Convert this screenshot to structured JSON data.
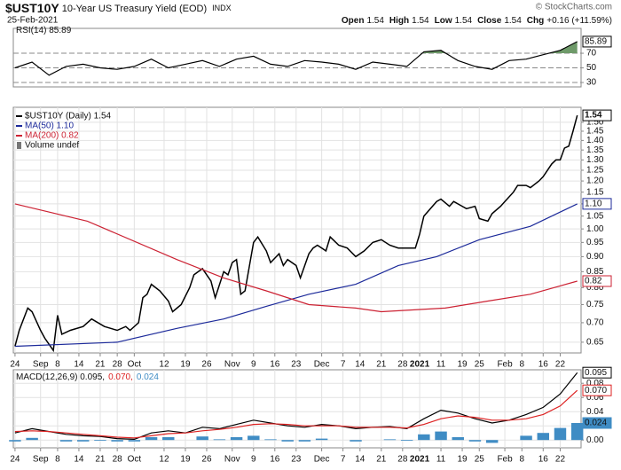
{
  "header": {
    "symbol": "$UST10Y",
    "name": "10-Year US Treasury Yield (EOD)",
    "exchange": "INDX",
    "date": "25-Feb-2021",
    "quote": [
      {
        "label": "Open",
        "value": "1.54"
      },
      {
        "label": "High",
        "value": "1.54"
      },
      {
        "label": "Low",
        "value": "1.54"
      },
      {
        "label": "Close",
        "value": "1.54"
      },
      {
        "label": "Chg",
        "value": "+0.16 (+11.59%)"
      }
    ],
    "copyright": "© StockCharts.com"
  },
  "chart_data": [
    {
      "type": "line",
      "xlim": [
        -0.4,
        132.9
      ],
      "ylim": [
        24,
        104
      ],
      "yticks": [
        30,
        50,
        70
      ],
      "grid": true,
      "fill_above": 70,
      "fill_color": "#6f9a6a",
      "x": [
        0,
        4,
        8,
        12,
        16,
        20,
        24,
        28,
        32,
        36,
        40,
        44,
        48,
        52,
        56,
        60,
        64,
        68,
        72,
        76,
        80,
        84,
        88,
        92,
        96,
        100,
        104,
        108,
        112,
        116,
        120,
        124,
        128,
        132
      ],
      "series": [
        {
          "name": "RSI(14) 85.89",
          "color": "#000000",
          "end_label": "85.89",
          "values": [
            50,
            58,
            40,
            52,
            55,
            50,
            48,
            52,
            62,
            50,
            55,
            60,
            52,
            62,
            66,
            55,
            52,
            60,
            58,
            55,
            48,
            58,
            55,
            52,
            72,
            74,
            60,
            52,
            48,
            60,
            62,
            68,
            74,
            85.89
          ]
        }
      ]
    },
    {
      "type": "line",
      "log": true,
      "grid": true,
      "xlim": [
        -0.4,
        132.9
      ],
      "ylim": [
        0.624,
        1.588
      ],
      "volume_label": "Volume undef",
      "yticks": [
        0.65,
        {
          "value": 0.7,
          "label": "0.70"
        },
        0.75,
        {
          "value": 0.8,
          "label": "0.80"
        },
        0.85,
        {
          "value": 0.9,
          "label": "0.90"
        },
        0.95,
        {
          "value": 1,
          "label": "1.00"
        },
        1.05,
        {
          "value": 1.1,
          "label": "1.10"
        },
        1.15,
        {
          "value": 1.2,
          "label": "1.20"
        },
        1.25,
        {
          "value": 1.3,
          "label": "1.30"
        },
        1.35,
        {
          "value": 1.4,
          "label": "1.40"
        },
        1.45,
        {
          "value": 1.5,
          "label": "1.50"
        }
      ],
      "xticks": [
        {
          "value": 0,
          "label": "24"
        },
        {
          "value": 6,
          "label": "Sep"
        },
        {
          "value": 10,
          "label": "8"
        },
        {
          "value": 15,
          "label": "14"
        },
        {
          "value": 20,
          "label": "21"
        },
        {
          "value": 24,
          "label": "28"
        },
        {
          "value": 28,
          "label": "Oct"
        },
        {
          "value": 35,
          "label": "12"
        },
        {
          "value": 40,
          "label": "19"
        },
        {
          "value": 45,
          "label": "26"
        },
        {
          "value": 51,
          "label": "Nov"
        },
        {
          "value": 56,
          "label": "9"
        },
        {
          "value": 61,
          "label": "16"
        },
        {
          "value": 66,
          "label": "23"
        },
        {
          "value": 72,
          "label": "Dec"
        },
        {
          "value": 77,
          "label": "7"
        },
        {
          "value": 81,
          "label": "14"
        },
        {
          "value": 86,
          "label": "21"
        },
        {
          "value": 91,
          "label": "28"
        },
        {
          "value": 95,
          "label": "2021"
        },
        {
          "value": 100,
          "label": "11"
        },
        {
          "value": 105,
          "label": "19"
        },
        {
          "value": 109,
          "label": "25"
        },
        {
          "value": 115,
          "label": "Feb"
        },
        {
          "value": 119,
          "label": "8"
        },
        {
          "value": 124,
          "label": "16"
        },
        {
          "value": 128,
          "label": "22"
        }
      ],
      "series": [
        {
          "name": "$UST10Y (Daily) 1.54",
          "color": "#000000",
          "end_label": "1.54",
          "x": [
            0,
            1,
            3,
            4,
            6,
            7,
            9,
            10,
            11,
            13,
            16,
            18,
            21,
            24,
            26,
            27,
            29,
            30,
            31,
            32,
            34,
            36,
            37,
            39,
            41,
            42,
            44,
            46,
            47,
            49,
            50,
            51,
            52,
            53,
            54,
            56,
            57,
            59,
            60,
            62,
            63,
            64,
            66,
            67,
            69,
            70,
            71,
            73,
            74,
            76,
            78,
            80,
            82,
            84,
            86,
            88,
            90,
            92,
            94,
            95,
            96,
            99,
            100,
            102,
            103,
            105,
            106,
            108,
            109,
            111,
            112,
            114,
            115,
            117,
            118,
            120,
            121,
            123,
            124,
            126,
            127,
            128,
            129,
            130,
            131,
            132
          ],
          "values": [
            0.64,
            0.68,
            0.74,
            0.73,
            0.68,
            0.66,
            0.63,
            0.72,
            0.67,
            0.68,
            0.69,
            0.71,
            0.69,
            0.68,
            0.69,
            0.68,
            0.7,
            0.77,
            0.78,
            0.81,
            0.79,
            0.76,
            0.73,
            0.75,
            0.8,
            0.84,
            0.86,
            0.82,
            0.77,
            0.85,
            0.84,
            0.88,
            0.89,
            0.78,
            0.79,
            0.95,
            0.97,
            0.92,
            0.88,
            0.91,
            0.87,
            0.89,
            0.87,
            0.83,
            0.91,
            0.93,
            0.94,
            0.92,
            0.97,
            0.94,
            0.93,
            0.9,
            0.92,
            0.95,
            0.96,
            0.94,
            0.93,
            0.93,
            0.93,
            0.98,
            1.05,
            1.11,
            1.12,
            1.09,
            1.11,
            1.09,
            1.08,
            1.09,
            1.04,
            1.03,
            1.06,
            1.09,
            1.11,
            1.15,
            1.18,
            1.18,
            1.17,
            1.2,
            1.22,
            1.28,
            1.3,
            1.3,
            1.36,
            1.37,
            1.45,
            1.54
          ]
        },
        {
          "name": "MA(50) 1.10",
          "color": "#1c2a9a",
          "end_label": "1.10",
          "x": [
            0,
            24,
            38,
            49,
            59,
            69,
            80,
            90,
            99,
            109,
            121,
            132
          ],
          "values": [
            0.64,
            0.65,
            0.685,
            0.71,
            0.745,
            0.78,
            0.81,
            0.87,
            0.9,
            0.96,
            1.01,
            1.1
          ]
        },
        {
          "name": "MA(200) 0.82",
          "color": "#cc2233",
          "end_label": "0.82",
          "x": [
            0,
            17,
            38,
            49,
            59,
            69,
            80,
            86,
            101,
            111,
            121,
            132
          ],
          "values": [
            1.1,
            1.03,
            0.89,
            0.83,
            0.79,
            0.75,
            0.74,
            0.73,
            0.74,
            0.76,
            0.78,
            0.82
          ]
        }
      ]
    },
    {
      "type": "line",
      "grid": true,
      "legend_inline": true,
      "xlim": [
        -0.4,
        132.9
      ],
      "ylim": [
        -0.011,
        0.099
      ],
      "yticks": [
        {
          "value": 0,
          "label": "0.00"
        },
        0.02,
        0.04,
        0.06,
        0.08
      ],
      "xticks": [
        {
          "value": 0,
          "label": "24"
        },
        {
          "value": 6,
          "label": "Sep"
        },
        {
          "value": 10,
          "label": "8"
        },
        {
          "value": 15,
          "label": "14"
        },
        {
          "value": 20,
          "label": "21"
        },
        {
          "value": 24,
          "label": "28"
        },
        {
          "value": 28,
          "label": "Oct"
        },
        {
          "value": 35,
          "label": "12"
        },
        {
          "value": 40,
          "label": "19"
        },
        {
          "value": 45,
          "label": "26"
        },
        {
          "value": 51,
          "label": "Nov"
        },
        {
          "value": 56,
          "label": "9"
        },
        {
          "value": 61,
          "label": "16"
        },
        {
          "value": 66,
          "label": "23"
        },
        {
          "value": 72,
          "label": "Dec"
        },
        {
          "value": 77,
          "label": "7"
        },
        {
          "value": 81,
          "label": "14"
        },
        {
          "value": 86,
          "label": "21"
        },
        {
          "value": 91,
          "label": "28"
        },
        {
          "value": 95,
          "label": "2021"
        },
        {
          "value": 100,
          "label": "11"
        },
        {
          "value": 105,
          "label": "19"
        },
        {
          "value": 109,
          "label": "25"
        },
        {
          "value": 115,
          "label": "Feb"
        },
        {
          "value": 119,
          "label": "8"
        },
        {
          "value": 124,
          "label": "16"
        },
        {
          "value": 128,
          "label": "22"
        }
      ],
      "x": [
        0,
        4,
        8,
        12,
        16,
        20,
        24,
        28,
        32,
        36,
        40,
        44,
        48,
        52,
        56,
        60,
        64,
        68,
        72,
        76,
        80,
        84,
        88,
        92,
        96,
        100,
        104,
        108,
        112,
        116,
        120,
        124,
        128,
        132
      ],
      "series": [
        {
          "name": "MACD(12,26,9) 0.095,",
          "color": "#000000",
          "end_label": "0.095",
          "values": [
            0.01,
            0.016,
            0.012,
            0.008,
            0.006,
            0.005,
            0.002,
            0.001,
            0.01,
            0.013,
            0.01,
            0.018,
            0.016,
            0.022,
            0.028,
            0.024,
            0.02,
            0.018,
            0.022,
            0.02,
            0.016,
            0.018,
            0.019,
            0.016,
            0.03,
            0.042,
            0.038,
            0.03,
            0.024,
            0.028,
            0.036,
            0.046,
            0.065,
            0.095
          ]
        },
        {
          "name": "0.070,",
          "color": "#dd2222",
          "end_label": "0.070",
          "values": [
            0.012,
            0.013,
            0.012,
            0.01,
            0.008,
            0.006,
            0.004,
            0.003,
            0.006,
            0.009,
            0.01,
            0.013,
            0.015,
            0.018,
            0.022,
            0.023,
            0.022,
            0.02,
            0.02,
            0.02,
            0.018,
            0.018,
            0.018,
            0.017,
            0.022,
            0.03,
            0.034,
            0.032,
            0.028,
            0.028,
            0.03,
            0.036,
            0.048,
            0.07
          ]
        },
        {
          "name": "0.024",
          "type": "bar",
          "color": "#3f8cc4",
          "end_label": "0.024",
          "values": [
            -0.002,
            0.003,
            0,
            -0.002,
            -0.002,
            -0.001,
            -0.002,
            -0.002,
            0.004,
            0.004,
            0,
            0.005,
            0.001,
            0.004,
            0.006,
            0.001,
            -0.002,
            -0.002,
            0.002,
            0,
            -0.002,
            0,
            0.001,
            -0.001,
            0.008,
            0.012,
            0.004,
            -0.002,
            -0.004,
            0,
            0.006,
            0.01,
            0.017,
            0.024
          ]
        }
      ]
    }
  ]
}
